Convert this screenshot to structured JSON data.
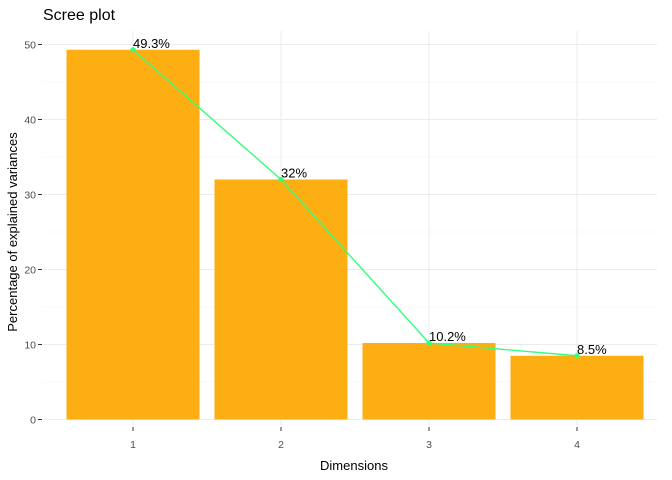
{
  "chart_data": {
    "type": "bar",
    "title": "Scree plot",
    "xlabel": "Dimensions",
    "ylabel": "Percentage of explained variances",
    "categories": [
      "1",
      "2",
      "3",
      "4"
    ],
    "values": [
      49.3,
      32.0,
      10.2,
      8.5
    ],
    "data_labels": [
      "49.3%",
      "32%",
      "10.2%",
      "8.5%"
    ],
    "yticks": [
      0,
      10,
      20,
      30,
      40,
      50
    ],
    "ylim": [
      0,
      50
    ],
    "grid": true,
    "overlay_line": true,
    "colors": {
      "bar": "#FCAE12",
      "line": "#33FF7A",
      "grid": "#EBEBEB"
    }
  }
}
